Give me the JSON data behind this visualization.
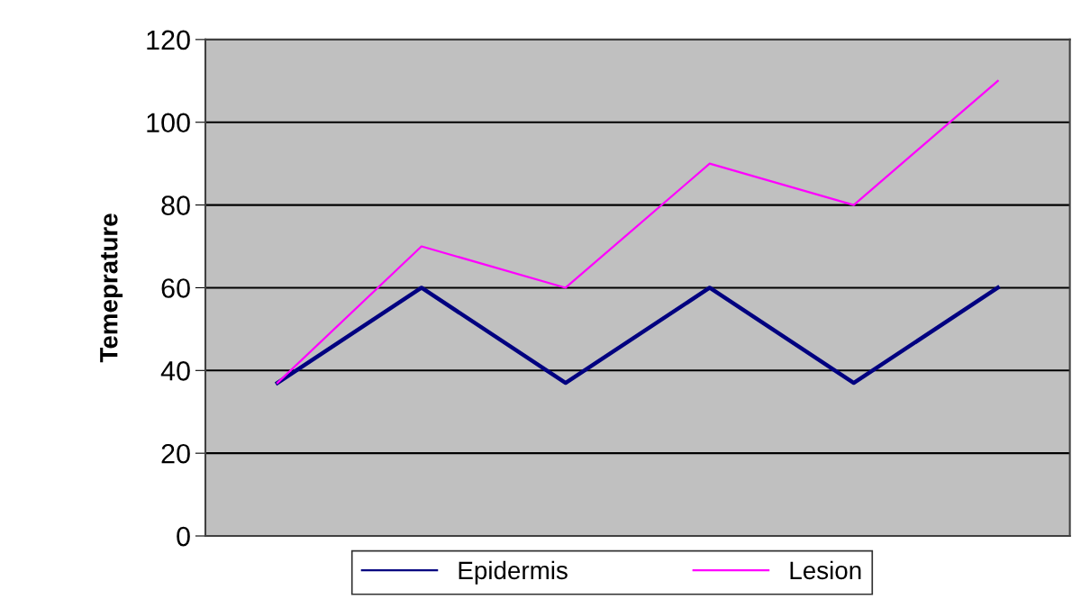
{
  "chart_data": {
    "type": "line",
    "ylabel": "Temeprature",
    "categories": [
      null,
      null,
      null,
      null,
      null,
      null
    ],
    "series": [
      {
        "name": "Epidermis",
        "color": "#000080",
        "values": [
          37,
          60,
          37,
          60,
          37,
          60
        ]
      },
      {
        "name": "Lesion",
        "color": "#ff00ff",
        "values": [
          37,
          70,
          60,
          90,
          80,
          110
        ]
      }
    ],
    "ylim": [
      0,
      120
    ],
    "yticks": [
      0,
      20,
      40,
      60,
      80,
      100,
      120
    ],
    "grid": "y",
    "legend": "bottom",
    "tick_labels": "y",
    "marker": "none",
    "line_style": "solid"
  }
}
